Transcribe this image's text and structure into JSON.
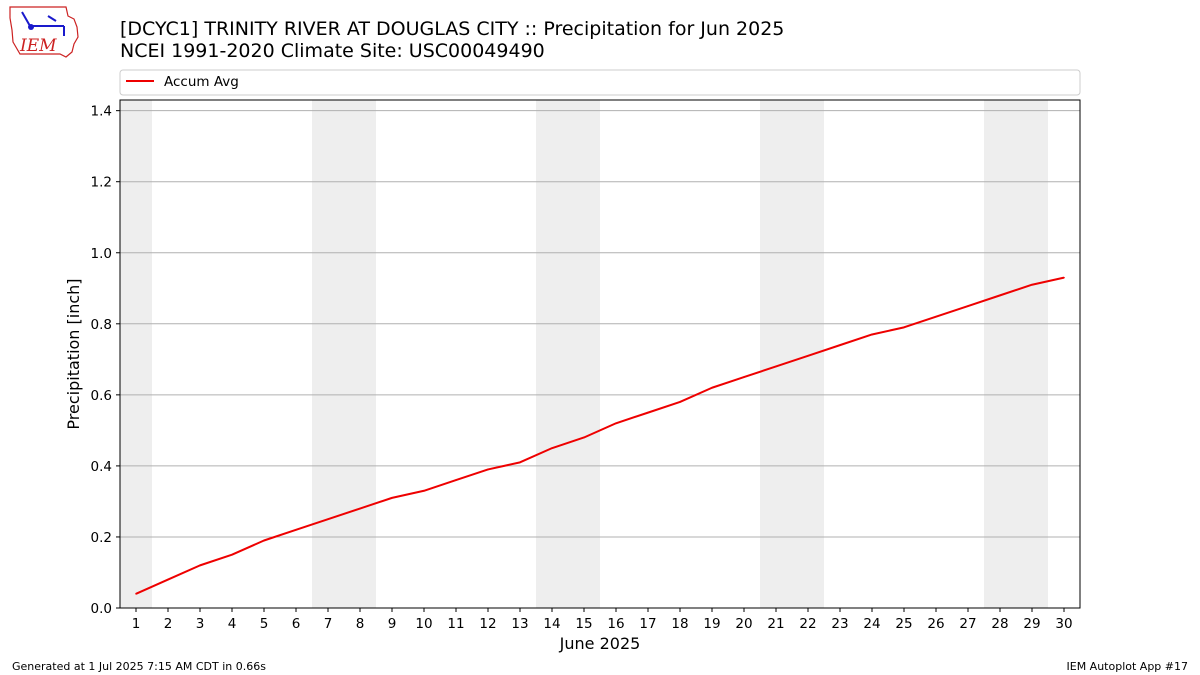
{
  "header": {
    "title_line1": "[DCYC1] TRINITY RIVER AT DOUGLAS CITY :: Precipitation for Jun 2025",
    "title_line2": "NCEI 1991-2020 Climate Site: USC00049490",
    "logo_text": "IEM"
  },
  "footer": {
    "generated": "Generated at 1 Jul 2025 7:15 AM CDT in 0.66s",
    "app": "IEM Autoplot App #17"
  },
  "colors": {
    "series_line": "#ee0000",
    "weekend_band": "#eeeeee",
    "grid": "#b0b0b0",
    "logo_red": "#cc2222",
    "logo_blue": "#1a1acc"
  },
  "chart_data": {
    "type": "line",
    "xlabel": "June 2025",
    "ylabel": "Precipitation [inch]",
    "xlim": [
      0.5,
      30.5
    ],
    "ylim": [
      0,
      1.43
    ],
    "y_ticks": [
      "0.0",
      "0.2",
      "0.4",
      "0.6",
      "0.8",
      "1.0",
      "1.2",
      "1.4"
    ],
    "y_tick_values": [
      0,
      0.2,
      0.4,
      0.6,
      0.8,
      1.0,
      1.2,
      1.4
    ],
    "x_ticks": [
      "1",
      "2",
      "3",
      "4",
      "5",
      "6",
      "7",
      "8",
      "9",
      "10",
      "11",
      "12",
      "13",
      "14",
      "15",
      "16",
      "17",
      "18",
      "19",
      "20",
      "21",
      "22",
      "23",
      "24",
      "25",
      "26",
      "27",
      "28",
      "29",
      "30"
    ],
    "grid": "horizontal",
    "legend_placement": "top",
    "shaded_days": [
      [
        0.5,
        1.5
      ],
      [
        6.5,
        8.5
      ],
      [
        13.5,
        15.5
      ],
      [
        20.5,
        22.5
      ],
      [
        27.5,
        29.5
      ]
    ],
    "series": [
      {
        "name": "Accum Avg",
        "x": [
          1,
          2,
          3,
          4,
          5,
          6,
          7,
          8,
          9,
          10,
          11,
          12,
          13,
          14,
          15,
          16,
          17,
          18,
          19,
          20,
          21,
          22,
          23,
          24,
          25,
          26,
          27,
          28,
          29,
          30
        ],
        "values": [
          0.04,
          0.08,
          0.12,
          0.15,
          0.19,
          0.22,
          0.25,
          0.28,
          0.31,
          0.33,
          0.36,
          0.39,
          0.41,
          0.45,
          0.48,
          0.52,
          0.55,
          0.58,
          0.62,
          0.65,
          0.68,
          0.71,
          0.74,
          0.77,
          0.79,
          0.82,
          0.85,
          0.88,
          0.91,
          0.93
        ]
      }
    ]
  }
}
